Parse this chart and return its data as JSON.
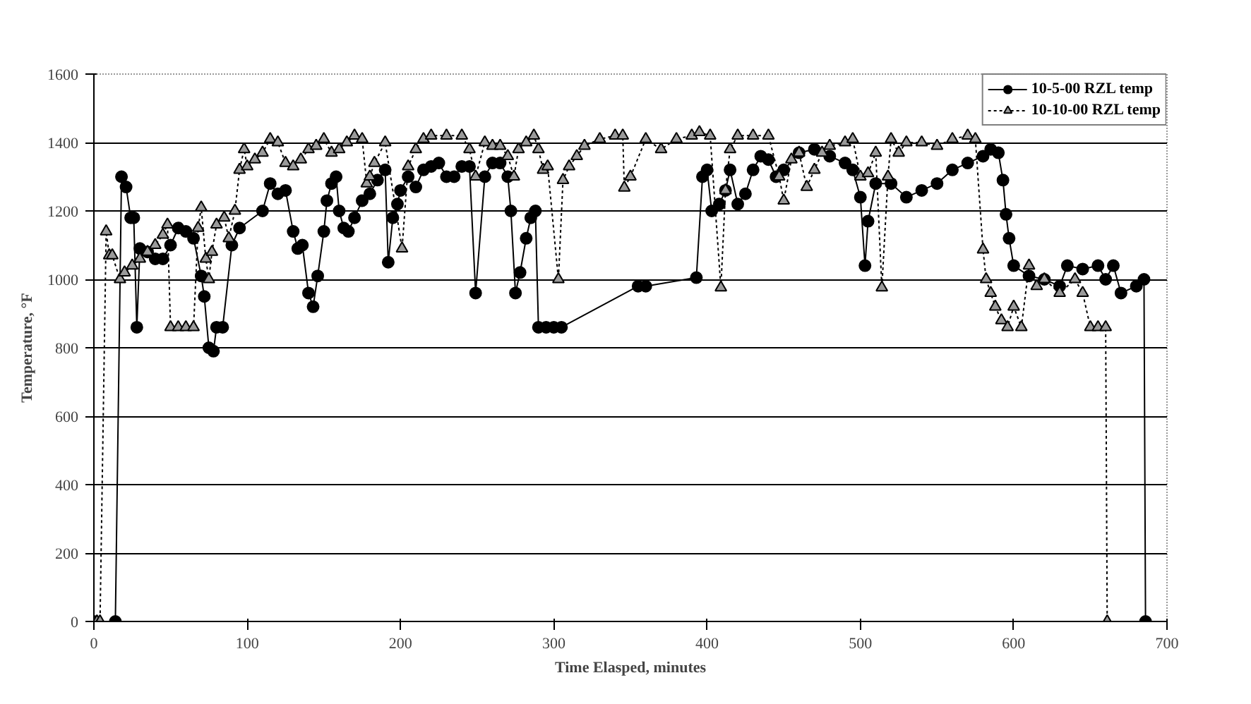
{
  "chart_data": {
    "type": "line",
    "xlabel": "Time Elasped, minutes",
    "ylabel": "Temperature, °F",
    "xlim": [
      0,
      700
    ],
    "xticks": [
      0,
      100,
      200,
      300,
      400,
      500,
      600,
      700
    ],
    "ylim": [
      0,
      1600
    ],
    "yticks": [
      0,
      200,
      400,
      600,
      800,
      1000,
      1200,
      1400,
      1600
    ],
    "grid": "y",
    "legend": "top right",
    "series": [
      {
        "name": "10-5-00 RZL temp",
        "color": "#000000",
        "marker": "circle",
        "line_style": "solid",
        "x": [
          0,
          14,
          18,
          21,
          24,
          26,
          28,
          30,
          35,
          40,
          45,
          50,
          55,
          60,
          65,
          70,
          72,
          75,
          78,
          80,
          84,
          90,
          95,
          110,
          115,
          120,
          125,
          130,
          133,
          136,
          140,
          143,
          146,
          150,
          152,
          155,
          158,
          160,
          163,
          166,
          170,
          175,
          180,
          185,
          190,
          192,
          195,
          198,
          200,
          205,
          210,
          215,
          220,
          225,
          230,
          235,
          240,
          245,
          249,
          255,
          260,
          265,
          270,
          272,
          275,
          278,
          282,
          285,
          288,
          290,
          295,
          300,
          305,
          355,
          360,
          393,
          397,
          400,
          403,
          408,
          412,
          415,
          420,
          425,
          430,
          435,
          440,
          445,
          450,
          460,
          470,
          480,
          490,
          495,
          500,
          503,
          505,
          510,
          520,
          530,
          540,
          550,
          560,
          570,
          580,
          585,
          590,
          593,
          595,
          597,
          600,
          610,
          620,
          630,
          635,
          645,
          655,
          660,
          665,
          670,
          680,
          685,
          686
        ],
        "values": [
          0,
          0,
          1300,
          1270,
          1180,
          1180,
          860,
          1090,
          1080,
          1060,
          1060,
          1100,
          1150,
          1140,
          1120,
          1010,
          950,
          800,
          790,
          860,
          860,
          1100,
          1150,
          1200,
          1280,
          1250,
          1260,
          1140,
          1090,
          1100,
          960,
          920,
          1010,
          1140,
          1230,
          1280,
          1300,
          1200,
          1150,
          1140,
          1180,
          1230,
          1250,
          1290,
          1320,
          1050,
          1180,
          1220,
          1260,
          1300,
          1270,
          1320,
          1330,
          1340,
          1300,
          1300,
          1330,
          1330,
          960,
          1300,
          1340,
          1340,
          1300,
          1200,
          960,
          1020,
          1120,
          1180,
          1200,
          860,
          860,
          860,
          860,
          980,
          980,
          1005,
          1300,
          1320,
          1200,
          1220,
          1260,
          1320,
          1220,
          1250,
          1320,
          1360,
          1350,
          1300,
          1320,
          1370,
          1380,
          1360,
          1340,
          1320,
          1240,
          1040,
          1170,
          1280,
          1280,
          1240,
          1260,
          1280,
          1320,
          1340,
          1360,
          1380,
          1370,
          1290,
          1190,
          1120,
          1040,
          1010,
          1000,
          980,
          1040,
          1030,
          1040,
          1000,
          1040,
          960,
          980,
          1000,
          0
        ]
      },
      {
        "name": "10-10-00 RZL temp",
        "color": "#000000",
        "marker": "triangle",
        "line_style": "dotted",
        "x": [
          2,
          4,
          8,
          10,
          12,
          17,
          20,
          25,
          30,
          35,
          40,
          45,
          48,
          50,
          55,
          60,
          65,
          68,
          70,
          73,
          75,
          77,
          80,
          85,
          88,
          92,
          95,
          98,
          100,
          105,
          110,
          115,
          120,
          125,
          130,
          135,
          140,
          145,
          150,
          155,
          160,
          165,
          170,
          175,
          178,
          180,
          183,
          190,
          201,
          205,
          210,
          215,
          220,
          230,
          240,
          245,
          249,
          255,
          260,
          265,
          270,
          274,
          277,
          282,
          287,
          290,
          293,
          296,
          303,
          306,
          310,
          315,
          320,
          330,
          340,
          345,
          346,
          350,
          360,
          370,
          380,
          390,
          395,
          402,
          409,
          412,
          415,
          420,
          430,
          440,
          447,
          450,
          455,
          460,
          465,
          470,
          475,
          480,
          490,
          495,
          500,
          505,
          510,
          514,
          518,
          520,
          525,
          530,
          540,
          550,
          560,
          570,
          575,
          580,
          582,
          585,
          588,
          592,
          596,
          600,
          605,
          610,
          615,
          620,
          630,
          640,
          645,
          650,
          655,
          660,
          661
        ],
        "values": [
          0,
          0,
          1140,
          1070,
          1070,
          1000,
          1020,
          1040,
          1060,
          1080,
          1100,
          1130,
          1160,
          860,
          860,
          860,
          860,
          1150,
          1210,
          1060,
          1000,
          1080,
          1160,
          1180,
          1120,
          1200,
          1320,
          1380,
          1330,
          1350,
          1370,
          1410,
          1400,
          1340,
          1330,
          1350,
          1380,
          1390,
          1410,
          1370,
          1380,
          1400,
          1420,
          1410,
          1280,
          1300,
          1340,
          1400,
          1090,
          1330,
          1380,
          1410,
          1420,
          1420,
          1420,
          1380,
          1300,
          1400,
          1390,
          1390,
          1360,
          1300,
          1380,
          1400,
          1420,
          1380,
          1320,
          1330,
          1000,
          1290,
          1330,
          1360,
          1390,
          1410,
          1420,
          1420,
          1268,
          1300,
          1410,
          1380,
          1410,
          1420,
          1430,
          1420,
          976,
          1260,
          1380,
          1420,
          1420,
          1420,
          1300,
          1230,
          1350,
          1370,
          1270,
          1320,
          1370,
          1390,
          1400,
          1410,
          1300,
          1310,
          1370,
          976,
          1300,
          1410,
          1370,
          1400,
          1400,
          1390,
          1410,
          1420,
          1410,
          1087,
          1000,
          960,
          920,
          880,
          860,
          920,
          860,
          1040,
          980,
          1000,
          960,
          1000,
          960,
          860,
          860,
          860,
          0
        ]
      }
    ]
  }
}
